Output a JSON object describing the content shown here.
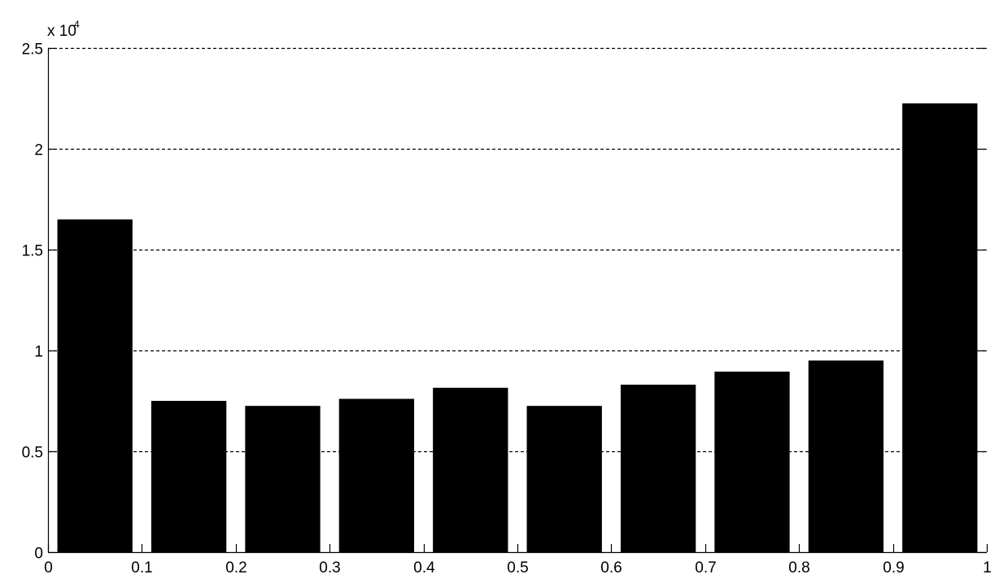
{
  "chart_data": {
    "type": "bar",
    "title": "",
    "xlabel": "",
    "ylabel": "",
    "x": [
      0.05,
      0.15,
      0.25,
      0.35,
      0.45,
      0.55,
      0.65,
      0.75,
      0.85,
      0.95
    ],
    "values": [
      16500,
      7500,
      7250,
      7600,
      8150,
      7250,
      8300,
      8950,
      9500,
      22250
    ],
    "bar_width": 0.08,
    "xlim": [
      0,
      1
    ],
    "ylim": [
      0,
      25000
    ],
    "x_ticks": [
      0,
      0.1,
      0.2,
      0.3,
      0.4,
      0.5,
      0.6,
      0.7,
      0.8,
      0.9,
      1
    ],
    "x_tick_labels": [
      "0",
      "0.1",
      "0.2",
      "0.3",
      "0.4",
      "0.5",
      "0.6",
      "0.7",
      "0.8",
      "0.9",
      "1"
    ],
    "y_ticks": [
      0,
      5000,
      10000,
      15000,
      20000,
      25000
    ],
    "y_tick_labels": [
      "0",
      "0.5",
      "1",
      "1.5",
      "2",
      "2.5"
    ],
    "y_multiplier_base": "x 10",
    "y_multiplier_exponent": "4",
    "grid": "y-dashed",
    "bar_color": "#000000",
    "grid_color": "#000000"
  }
}
